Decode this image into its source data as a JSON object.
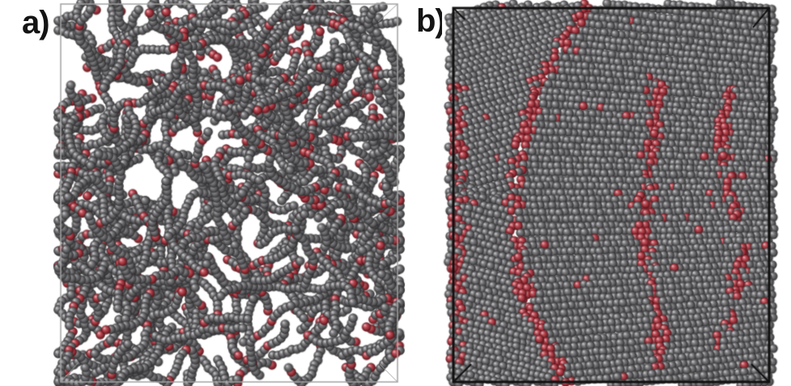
{
  "panels": [
    {
      "label": "a)",
      "frame_color": "#a2a2a2"
    },
    {
      "label": "b)",
      "frame_color": "#111111"
    }
  ],
  "colors": {
    "gray_bead": "#69696d",
    "red_bead": "#b3303c",
    "background": "#ffffff"
  }
}
